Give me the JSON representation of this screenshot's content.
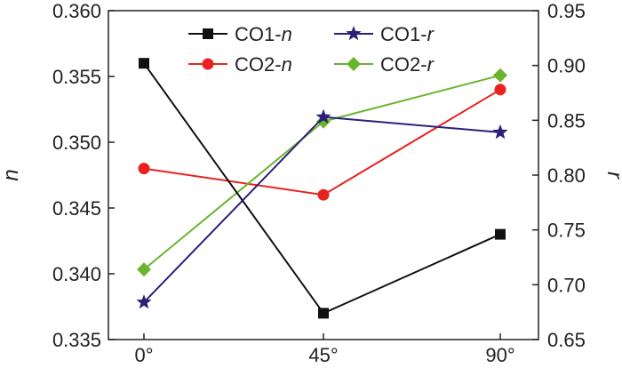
{
  "chart_data": {
    "type": "line",
    "categories": [
      "0°",
      "45°",
      "90°"
    ],
    "left_axis": {
      "label": "n",
      "range": [
        0.335,
        0.36
      ],
      "ticks": [
        "0.335",
        "0.340",
        "0.345",
        "0.350",
        "0.355",
        "0.360"
      ],
      "tick_values": [
        0.335,
        0.34,
        0.345,
        0.35,
        0.355,
        0.36
      ]
    },
    "right_axis": {
      "label": "r",
      "range": [
        0.65,
        0.95
      ],
      "ticks": [
        "0.65",
        "0.70",
        "0.75",
        "0.80",
        "0.85",
        "0.90",
        "0.95"
      ],
      "tick_values": [
        0.65,
        0.7,
        0.75,
        0.8,
        0.85,
        0.9,
        0.95
      ]
    },
    "grid": false,
    "legend_position": "top-center",
    "series": [
      {
        "name_prefix": "CO1-",
        "name_var": "n",
        "axis": "left",
        "values": [
          0.356,
          0.337,
          0.343
        ],
        "color": "#111111",
        "marker": "square"
      },
      {
        "name_prefix": "CO1-",
        "name_var": "r",
        "axis": "right",
        "values": [
          0.684,
          0.853,
          0.839
        ],
        "color": "#2b1f7a",
        "marker": "star"
      },
      {
        "name_prefix": "CO2-",
        "name_var": "n",
        "axis": "left",
        "values": [
          0.348,
          0.346,
          0.354
        ],
        "color": "#e8231f",
        "marker": "circle"
      },
      {
        "name_prefix": "CO2-",
        "name_var": "r",
        "axis": "right",
        "values": [
          0.714,
          0.849,
          0.891
        ],
        "color": "#6ab52e",
        "marker": "diamond"
      }
    ]
  }
}
